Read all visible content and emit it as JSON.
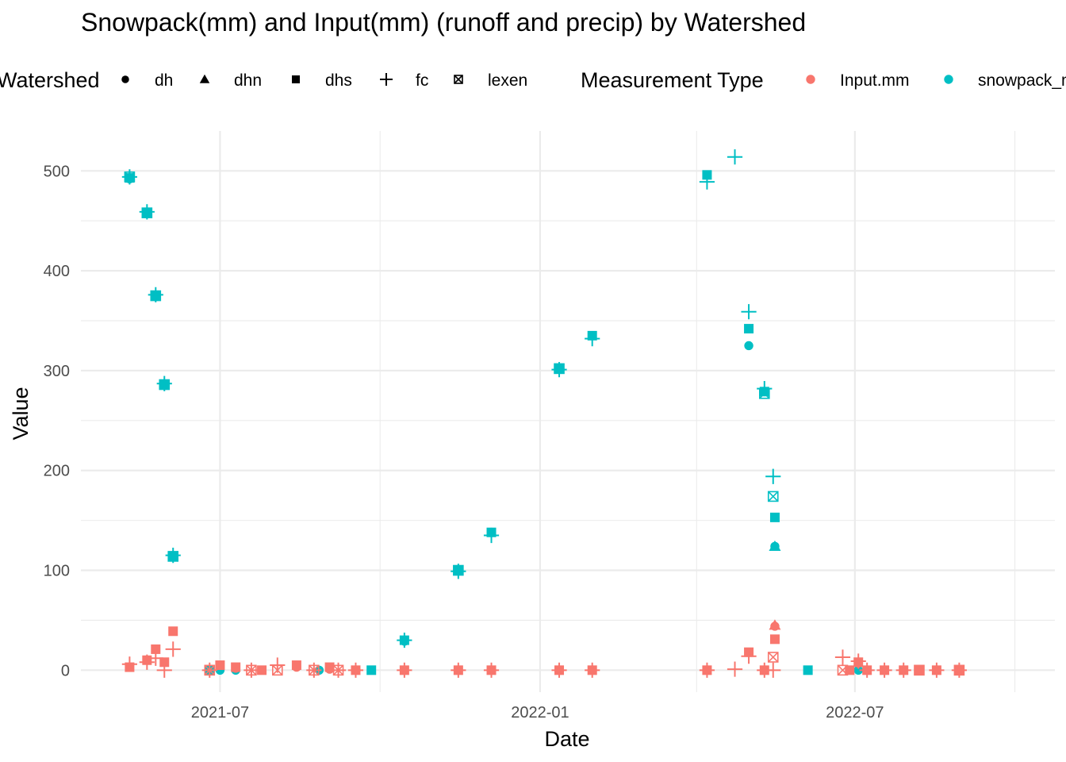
{
  "chart_data": {
    "type": "scatter",
    "title": "Snowpack(mm) and Input(mm) (runoff and precip) by Watershed",
    "xlabel": "Date",
    "ylabel": "Value",
    "xlim": [
      "2021-04-12",
      "2022-10-24"
    ],
    "ylim": [
      -22,
      540
    ],
    "x_ticks": [
      {
        "value": "2021-07-01",
        "label": "2021-07"
      },
      {
        "value": "2022-01-01",
        "label": "2022-01"
      },
      {
        "value": "2022-07-01",
        "label": "2022-07"
      }
    ],
    "x_minor_ticks": [
      "2021-04-01",
      "2021-10-01",
      "2022-04-01",
      "2022-10-01"
    ],
    "y_ticks": [
      0,
      100,
      200,
      300,
      400,
      500
    ],
    "y_minor_ticks": [
      50,
      150,
      250,
      350,
      450
    ],
    "grid": true,
    "legends": [
      {
        "title": "Watershed",
        "kind": "shape",
        "entries": [
          {
            "label": "dh",
            "shape": "circle"
          },
          {
            "label": "dhn",
            "shape": "triangle"
          },
          {
            "label": "dhs",
            "shape": "square"
          },
          {
            "label": "fc",
            "shape": "plus"
          },
          {
            "label": "lexen",
            "shape": "boxx"
          }
        ]
      },
      {
        "title": "Measurement Type",
        "kind": "color",
        "entries": [
          {
            "label": "Input.mm",
            "color": "#F8766D"
          },
          {
            "label": "snowpack_mm",
            "color": "#00BFC4"
          }
        ]
      }
    ],
    "placement": "top",
    "series": [
      {
        "name": "snowpack_mm",
        "color": "#00BFC4",
        "points": [
          {
            "x": "2021-05-10",
            "y": 493,
            "shape": "square"
          },
          {
            "x": "2021-05-10",
            "y": 494,
            "shape": "plus"
          },
          {
            "x": "2021-05-10",
            "y": 492,
            "shape": "circle"
          },
          {
            "x": "2021-05-10",
            "y": 494,
            "shape": "boxx"
          },
          {
            "x": "2021-05-20",
            "y": 458,
            "shape": "square"
          },
          {
            "x": "2021-05-20",
            "y": 459,
            "shape": "plus"
          },
          {
            "x": "2021-05-20",
            "y": 458,
            "shape": "boxx"
          },
          {
            "x": "2021-05-25",
            "y": 375,
            "shape": "square"
          },
          {
            "x": "2021-05-25",
            "y": 376,
            "shape": "plus"
          },
          {
            "x": "2021-05-25",
            "y": 375,
            "shape": "boxx"
          },
          {
            "x": "2021-05-30",
            "y": 286,
            "shape": "square"
          },
          {
            "x": "2021-05-30",
            "y": 287,
            "shape": "plus"
          },
          {
            "x": "2021-05-30",
            "y": 286,
            "shape": "boxx"
          },
          {
            "x": "2021-06-04",
            "y": 114,
            "shape": "square"
          },
          {
            "x": "2021-06-04",
            "y": 115,
            "shape": "plus"
          },
          {
            "x": "2021-06-04",
            "y": 114,
            "shape": "boxx"
          },
          {
            "x": "2021-06-25",
            "y": 0,
            "shape": "square"
          },
          {
            "x": "2021-07-01",
            "y": 0,
            "shape": "circle"
          },
          {
            "x": "2021-07-10",
            "y": 0,
            "shape": "circle"
          },
          {
            "x": "2021-08-27",
            "y": 0,
            "shape": "circle"
          },
          {
            "x": "2021-09-26",
            "y": 0,
            "shape": "square"
          },
          {
            "x": "2021-10-15",
            "y": 30,
            "shape": "plus"
          },
          {
            "x": "2021-10-15",
            "y": 30,
            "shape": "square"
          },
          {
            "x": "2021-10-15",
            "y": 29,
            "shape": "circle"
          },
          {
            "x": "2021-11-15",
            "y": 100,
            "shape": "square"
          },
          {
            "x": "2021-11-15",
            "y": 99,
            "shape": "plus"
          },
          {
            "x": "2021-11-15",
            "y": 100,
            "shape": "boxx"
          },
          {
            "x": "2021-12-04",
            "y": 138,
            "shape": "square"
          },
          {
            "x": "2021-12-04",
            "y": 135,
            "shape": "plus"
          },
          {
            "x": "2022-01-12",
            "y": 302,
            "shape": "square"
          },
          {
            "x": "2022-01-12",
            "y": 301,
            "shape": "plus"
          },
          {
            "x": "2022-01-12",
            "y": 302,
            "shape": "boxx"
          },
          {
            "x": "2022-01-31",
            "y": 335,
            "shape": "square"
          },
          {
            "x": "2022-01-31",
            "y": 332,
            "shape": "plus"
          },
          {
            "x": "2022-04-07",
            "y": 496,
            "shape": "square"
          },
          {
            "x": "2022-04-07",
            "y": 489,
            "shape": "plus"
          },
          {
            "x": "2022-04-23",
            "y": 514,
            "shape": "plus"
          },
          {
            "x": "2022-05-01",
            "y": 342,
            "shape": "square"
          },
          {
            "x": "2022-05-01",
            "y": 359,
            "shape": "plus"
          },
          {
            "x": "2022-05-01",
            "y": 325,
            "shape": "circle"
          },
          {
            "x": "2022-05-10",
            "y": 277,
            "shape": "boxx"
          },
          {
            "x": "2022-05-10",
            "y": 282,
            "shape": "plus"
          },
          {
            "x": "2022-05-10",
            "y": 279,
            "shape": "square"
          },
          {
            "x": "2022-05-15",
            "y": 194,
            "shape": "plus"
          },
          {
            "x": "2022-05-15",
            "y": 174,
            "shape": "boxx"
          },
          {
            "x": "2022-05-16",
            "y": 153,
            "shape": "square"
          },
          {
            "x": "2022-05-16",
            "y": 124,
            "shape": "circle"
          },
          {
            "x": "2022-05-16",
            "y": 124,
            "shape": "triangle"
          },
          {
            "x": "2022-06-04",
            "y": 0,
            "shape": "square"
          },
          {
            "x": "2022-07-03",
            "y": 0,
            "shape": "circle"
          }
        ]
      },
      {
        "name": "Input.mm",
        "color": "#F8766D",
        "points": [
          {
            "x": "2021-05-10",
            "y": 3,
            "shape": "square"
          },
          {
            "x": "2021-05-10",
            "y": 6,
            "shape": "plus"
          },
          {
            "x": "2021-05-20",
            "y": 10,
            "shape": "square"
          },
          {
            "x": "2021-05-20",
            "y": 8,
            "shape": "plus"
          },
          {
            "x": "2021-05-25",
            "y": 21,
            "shape": "square"
          },
          {
            "x": "2021-05-25",
            "y": 12,
            "shape": "plus"
          },
          {
            "x": "2021-05-30",
            "y": 8,
            "shape": "square"
          },
          {
            "x": "2021-05-30",
            "y": 0,
            "shape": "plus"
          },
          {
            "x": "2021-06-04",
            "y": 39,
            "shape": "square"
          },
          {
            "x": "2021-06-04",
            "y": 21,
            "shape": "plus"
          },
          {
            "x": "2021-06-25",
            "y": 0,
            "shape": "boxx"
          },
          {
            "x": "2021-06-25",
            "y": 0,
            "shape": "plus"
          },
          {
            "x": "2021-07-01",
            "y": 5,
            "shape": "square"
          },
          {
            "x": "2021-07-10",
            "y": 3,
            "shape": "square"
          },
          {
            "x": "2021-07-10",
            "y": 2,
            "shape": "circle"
          },
          {
            "x": "2021-07-19",
            "y": 0,
            "shape": "boxx"
          },
          {
            "x": "2021-07-19",
            "y": 0,
            "shape": "plus"
          },
          {
            "x": "2021-07-25",
            "y": 0,
            "shape": "square"
          },
          {
            "x": "2021-08-03",
            "y": 0,
            "shape": "boxx"
          },
          {
            "x": "2021-08-03",
            "y": 5,
            "shape": "plus"
          },
          {
            "x": "2021-08-14",
            "y": 5,
            "shape": "square"
          },
          {
            "x": "2021-08-14",
            "y": 3,
            "shape": "circle"
          },
          {
            "x": "2021-08-24",
            "y": 0,
            "shape": "boxx"
          },
          {
            "x": "2021-08-24",
            "y": 0,
            "shape": "plus"
          },
          {
            "x": "2021-09-02",
            "y": 3,
            "shape": "square"
          },
          {
            "x": "2021-09-02",
            "y": 1,
            "shape": "circle"
          },
          {
            "x": "2021-09-07",
            "y": 0,
            "shape": "boxx"
          },
          {
            "x": "2021-09-07",
            "y": 0,
            "shape": "plus"
          },
          {
            "x": "2021-09-17",
            "y": 0,
            "shape": "square"
          },
          {
            "x": "2021-09-17",
            "y": 0,
            "shape": "plus"
          },
          {
            "x": "2021-10-15",
            "y": 0,
            "shape": "square"
          },
          {
            "x": "2021-10-15",
            "y": 0,
            "shape": "plus"
          },
          {
            "x": "2021-11-15",
            "y": 0,
            "shape": "square"
          },
          {
            "x": "2021-11-15",
            "y": 0,
            "shape": "plus"
          },
          {
            "x": "2021-12-04",
            "y": 0,
            "shape": "square"
          },
          {
            "x": "2021-12-04",
            "y": 0,
            "shape": "plus"
          },
          {
            "x": "2022-01-12",
            "y": 0,
            "shape": "square"
          },
          {
            "x": "2022-01-12",
            "y": 0,
            "shape": "plus"
          },
          {
            "x": "2022-01-31",
            "y": 0,
            "shape": "square"
          },
          {
            "x": "2022-01-31",
            "y": 0,
            "shape": "plus"
          },
          {
            "x": "2022-04-07",
            "y": 0,
            "shape": "square"
          },
          {
            "x": "2022-04-07",
            "y": 0,
            "shape": "plus"
          },
          {
            "x": "2022-04-23",
            "y": 1,
            "shape": "plus"
          },
          {
            "x": "2022-05-01",
            "y": 18,
            "shape": "square"
          },
          {
            "x": "2022-05-01",
            "y": 14,
            "shape": "plus"
          },
          {
            "x": "2022-05-10",
            "y": 0,
            "shape": "square"
          },
          {
            "x": "2022-05-10",
            "y": 0,
            "shape": "plus"
          },
          {
            "x": "2022-05-15",
            "y": 0,
            "shape": "plus"
          },
          {
            "x": "2022-05-15",
            "y": 13,
            "shape": "boxx"
          },
          {
            "x": "2022-05-16",
            "y": 31,
            "shape": "square"
          },
          {
            "x": "2022-05-16",
            "y": 45,
            "shape": "triangle"
          },
          {
            "x": "2022-05-16",
            "y": 44,
            "shape": "circle"
          },
          {
            "x": "2022-06-24",
            "y": 13,
            "shape": "plus"
          },
          {
            "x": "2022-06-24",
            "y": 0,
            "shape": "boxx"
          },
          {
            "x": "2022-06-28",
            "y": 0,
            "shape": "square"
          },
          {
            "x": "2022-07-03",
            "y": 8,
            "shape": "square"
          },
          {
            "x": "2022-07-03",
            "y": 9,
            "shape": "plus"
          },
          {
            "x": "2022-07-03",
            "y": 7,
            "shape": "circle"
          },
          {
            "x": "2022-07-08",
            "y": 0,
            "shape": "square"
          },
          {
            "x": "2022-07-08",
            "y": 0,
            "shape": "plus"
          },
          {
            "x": "2022-07-18",
            "y": 0,
            "shape": "square"
          },
          {
            "x": "2022-07-18",
            "y": 0,
            "shape": "plus"
          },
          {
            "x": "2022-07-29",
            "y": 0,
            "shape": "square"
          },
          {
            "x": "2022-07-29",
            "y": 0,
            "shape": "plus"
          },
          {
            "x": "2022-08-07",
            "y": 0,
            "shape": "square"
          },
          {
            "x": "2022-08-07",
            "y": 0,
            "shape": "boxx"
          },
          {
            "x": "2022-08-17",
            "y": 0,
            "shape": "square"
          },
          {
            "x": "2022-08-17",
            "y": 0,
            "shape": "plus"
          },
          {
            "x": "2022-08-30",
            "y": 0,
            "shape": "square"
          },
          {
            "x": "2022-08-30",
            "y": 0,
            "shape": "plus"
          },
          {
            "x": "2022-08-30",
            "y": 0,
            "shape": "boxx"
          }
        ]
      }
    ]
  }
}
